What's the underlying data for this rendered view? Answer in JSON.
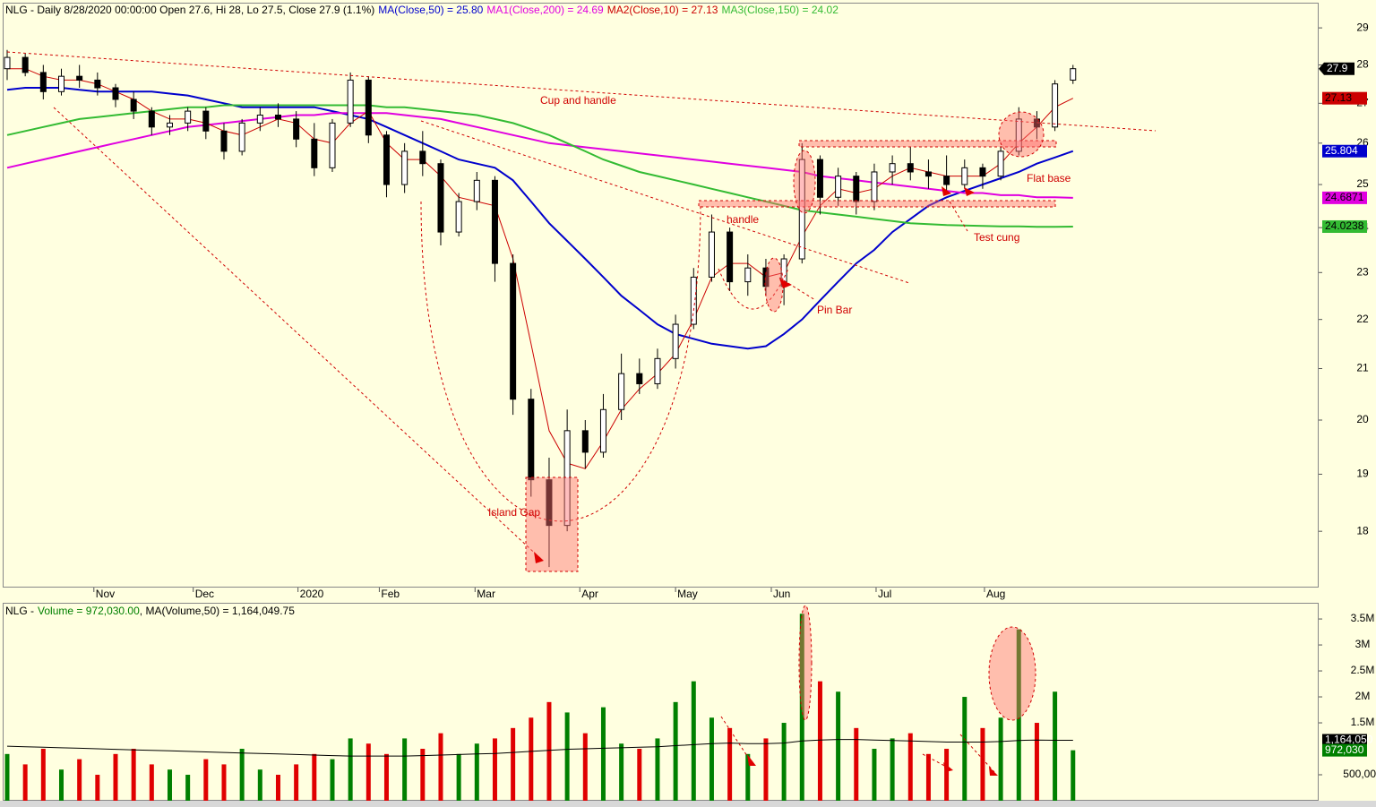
{
  "chart_data": [
    {
      "type": "candlestick",
      "title": "NLG - Daily 8/28/2020 00:00:00 Open 27.6, Hi 28, Lo 27.5, Close 27.9 (1.1%)",
      "xlim": [
        0,
        72.5
      ],
      "xticks": [
        {
          "value": 4.8,
          "label": "Nov"
        },
        {
          "value": 10.3,
          "label": "Dec"
        },
        {
          "value": 16.1,
          "label": "2020"
        },
        {
          "value": 20.6,
          "label": "Feb"
        },
        {
          "value": 25.9,
          "label": "Mar"
        },
        {
          "value": 31.7,
          "label": "Apr"
        },
        {
          "value": 37,
          "label": "May"
        },
        {
          "value": 42.3,
          "label": "Jun"
        },
        {
          "value": 48.1,
          "label": "Jul"
        },
        {
          "value": 54.1,
          "label": "Aug"
        }
      ],
      "ylim": [
        17.08,
        29.65
      ],
      "yticks": [
        18,
        19,
        20,
        21,
        22,
        23,
        24,
        25,
        26,
        27,
        28,
        29
      ],
      "log_scale": true,
      "up_color": "#ffffff",
      "down_color": "#000000",
      "outline_color": "#000000",
      "close_box_color": "#000000",
      "close_text_color": "#ffffff",
      "open": [
        27.9,
        28.2,
        27.8,
        27.3,
        27.7,
        27.6,
        27.4,
        27.1,
        26.8,
        26.4,
        26.5,
        26.8,
        26.3,
        25.8,
        26.5,
        26.7,
        26.6,
        26.1,
        25.4,
        26.5,
        27.6,
        26.2,
        25.0,
        25.8,
        25.5,
        23.9,
        24.6,
        25.1,
        23.2,
        20.4,
        18.9,
        18.1,
        19.8,
        19.4,
        20.2,
        20.9,
        20.7,
        21.2,
        21.9,
        22.9,
        23.9,
        22.8,
        23.1,
        22.7,
        23.3,
        25.6,
        24.7,
        25.2,
        24.6,
        25.3,
        25.5,
        25.3,
        25.2,
        25.0,
        25.4,
        25.2,
        25.8,
        26.6,
        26.4,
        27.6
      ],
      "high": [
        28.4,
        28.3,
        28.0,
        27.9,
        28.0,
        27.8,
        27.5,
        27.3,
        26.9,
        26.7,
        26.9,
        26.9,
        26.5,
        26.6,
        26.9,
        27.0,
        26.8,
        26.5,
        26.6,
        27.8,
        27.7,
        26.3,
        26.0,
        26.3,
        25.6,
        24.8,
        25.3,
        25.2,
        23.4,
        20.6,
        19.3,
        20.2,
        20.0,
        20.5,
        21.3,
        21.2,
        21.4,
        22.1,
        23.1,
        24.3,
        24.0,
        23.4,
        23.3,
        23.4,
        26.0,
        25.7,
        25.4,
        25.3,
        25.5,
        25.7,
        25.9,
        25.6,
        25.7,
        25.6,
        25.5,
        25.9,
        26.9,
        26.8,
        27.6,
        28.0
      ],
      "low": [
        27.6,
        27.7,
        27.1,
        27.2,
        27.4,
        27.2,
        26.9,
        26.6,
        26.2,
        26.2,
        26.3,
        26.1,
        25.6,
        25.7,
        26.3,
        26.4,
        25.9,
        25.2,
        25.3,
        26.4,
        26.0,
        24.7,
        24.8,
        25.2,
        23.6,
        23.8,
        24.4,
        22.8,
        20.1,
        18.6,
        17.4,
        18.0,
        19.1,
        19.3,
        20.0,
        20.5,
        20.6,
        21.0,
        21.8,
        22.8,
        22.6,
        22.5,
        22.5,
        22.3,
        23.2,
        24.3,
        24.5,
        24.3,
        24.4,
        25.0,
        25.1,
        24.9,
        24.8,
        24.9,
        24.9,
        25.1,
        25.7,
        26.1,
        26.3,
        27.5
      ],
      "close": [
        28.2,
        27.8,
        27.3,
        27.7,
        27.6,
        27.4,
        27.1,
        26.8,
        26.4,
        26.5,
        26.8,
        26.3,
        25.8,
        26.5,
        26.7,
        26.6,
        26.1,
        25.4,
        26.5,
        27.6,
        26.2,
        25.0,
        25.8,
        25.5,
        23.9,
        24.6,
        25.1,
        23.2,
        20.4,
        18.9,
        18.1,
        19.8,
        19.4,
        20.2,
        20.9,
        20.7,
        21.2,
        21.9,
        22.9,
        23.9,
        22.8,
        23.1,
        22.7,
        23.3,
        25.6,
        24.7,
        25.2,
        24.6,
        25.3,
        25.5,
        25.3,
        25.2,
        25.0,
        25.4,
        25.2,
        25.8,
        26.6,
        26.4,
        27.5,
        27.9
      ],
      "series": [
        {
          "name": "MA(Close,50) = 25.80",
          "color": "#0000cc",
          "label_color": "#ffffff",
          "values": [
            27.35,
            27.4,
            27.4,
            27.4,
            27.35,
            27.3,
            27.3,
            27.3,
            27.3,
            27.25,
            27.2,
            27.1,
            27.0,
            26.9,
            26.9,
            26.9,
            26.9,
            26.9,
            26.8,
            26.7,
            26.6,
            26.4,
            26.2,
            26.0,
            25.8,
            25.6,
            25.5,
            25.4,
            25.1,
            24.6,
            24.1,
            23.7,
            23.3,
            22.9,
            22.5,
            22.2,
            21.9,
            21.7,
            21.6,
            21.5,
            21.45,
            21.4,
            21.45,
            21.7,
            22.0,
            22.4,
            22.8,
            23.2,
            23.5,
            23.9,
            24.2,
            24.5,
            24.7,
            24.85,
            25.0,
            25.15,
            25.3,
            25.5,
            25.65,
            25.804
          ]
        },
        {
          "name": "MA1(Close,200) = 24.69",
          "color": "#e000e0",
          "label_color": "#000000",
          "values": [
            25.4,
            25.5,
            25.6,
            25.7,
            25.8,
            25.9,
            26.0,
            26.1,
            26.2,
            26.3,
            26.4,
            26.45,
            26.5,
            26.55,
            26.6,
            26.65,
            26.7,
            26.7,
            26.75,
            26.75,
            26.75,
            26.75,
            26.7,
            26.65,
            26.6,
            26.5,
            26.4,
            26.3,
            26.2,
            26.1,
            26.0,
            25.95,
            25.9,
            25.85,
            25.8,
            25.75,
            25.7,
            25.65,
            25.6,
            25.55,
            25.5,
            25.45,
            25.4,
            25.35,
            25.3,
            25.2,
            25.15,
            25.1,
            25.05,
            25.0,
            24.95,
            24.9,
            24.85,
            24.8,
            24.8,
            24.75,
            24.75,
            24.7,
            24.7,
            24.6871
          ]
        },
        {
          "name": "MA2(Close,10) = 27.13",
          "color": "#cc0000",
          "label_color": "#000000",
          "values": [
            27.9,
            27.9,
            27.7,
            27.6,
            27.6,
            27.5,
            27.3,
            27.1,
            26.8,
            26.6,
            26.6,
            26.5,
            26.3,
            26.2,
            26.4,
            26.6,
            26.5,
            26.1,
            26.0,
            26.5,
            26.8,
            26.0,
            25.6,
            25.6,
            25.2,
            24.7,
            24.6,
            24.5,
            23.3,
            21.5,
            19.8,
            19.2,
            19.1,
            19.6,
            20.2,
            20.6,
            20.9,
            21.3,
            22.0,
            22.9,
            23.2,
            23.2,
            22.9,
            23.0,
            23.8,
            24.5,
            24.9,
            24.8,
            24.9,
            25.2,
            25.4,
            25.3,
            25.2,
            25.2,
            25.2,
            25.5,
            26.0,
            26.4,
            26.9,
            27.13
          ]
        },
        {
          "name": "MA3(Close,150) = 24.02",
          "color": "#33bb33",
          "label_color": "#000000",
          "values": [
            26.2,
            26.3,
            26.4,
            26.5,
            26.6,
            26.65,
            26.7,
            26.75,
            26.8,
            26.85,
            26.9,
            26.9,
            26.95,
            26.95,
            26.95,
            26.95,
            26.95,
            26.95,
            26.95,
            26.95,
            26.95,
            26.9,
            26.9,
            26.85,
            26.8,
            26.75,
            26.7,
            26.6,
            26.5,
            26.35,
            26.2,
            26.0,
            25.8,
            25.6,
            25.45,
            25.3,
            25.2,
            25.1,
            25.0,
            24.9,
            24.8,
            24.7,
            24.6,
            24.5,
            24.4,
            24.35,
            24.3,
            24.25,
            24.2,
            24.15,
            24.1,
            24.08,
            24.06,
            24.05,
            24.04,
            24.03,
            24.03,
            24.02,
            24.02,
            24.0238
          ]
        }
      ],
      "annotations": [
        "Cup and handle",
        "handle",
        "Island Gap",
        "Pin Bar",
        "Flat base",
        "Test cung"
      ]
    },
    {
      "type": "bar",
      "title": "NLG -",
      "name": "Volume = 972,030.00",
      "xlim": [
        0,
        72.5
      ],
      "ylim": [
        0,
        3760000
      ],
      "yticks": [
        {
          "value": 500000,
          "label": "500,000"
        },
        {
          "value": 1500000,
          "label": "1.5M"
        },
        {
          "value": 2000000,
          "label": "2M"
        },
        {
          "value": 2500000,
          "label": "2.5M"
        },
        {
          "value": 3000000,
          "label": "3M"
        },
        {
          "value": 3500000,
          "label": "3.5M"
        }
      ],
      "up_color": "#008000",
      "down_color": "#e00000",
      "values": [
        900000,
        700000,
        1000000,
        600000,
        800000,
        500000,
        900000,
        1000000,
        700000,
        600000,
        500000,
        800000,
        700000,
        1000000,
        600000,
        500000,
        700000,
        900000,
        800000,
        1200000,
        1100000,
        900000,
        1200000,
        1000000,
        1300000,
        900000,
        1100000,
        1200000,
        1400000,
        1600000,
        1900000,
        1700000,
        1300000,
        1800000,
        1100000,
        1000000,
        1200000,
        1900000,
        2300000,
        1600000,
        1400000,
        900000,
        1200000,
        1500000,
        3600000,
        2300000,
        2100000,
        1400000,
        1000000,
        1200000,
        1300000,
        900000,
        1000000,
        2000000,
        1400000,
        1600000,
        3300000,
        1500000,
        2100000,
        972030
      ],
      "last_label": "972,030",
      "series": [
        {
          "name": ", MA(Volume,50) = 1,164,049.75",
          "color": "#000000",
          "label_color": "#ffffff",
          "last_label": "1,164,050",
          "values": [
            1050000,
            1040000,
            1030000,
            1020000,
            1010000,
            1000000,
            990000,
            980000,
            970000,
            960000,
            950000,
            940000,
            930000,
            920000,
            910000,
            900000,
            890000,
            880000,
            870000,
            860000,
            860000,
            860000,
            860000,
            870000,
            880000,
            890000,
            900000,
            910000,
            930000,
            950000,
            970000,
            990000,
            1000000,
            1010000,
            1020000,
            1030000,
            1040000,
            1060000,
            1080000,
            1100000,
            1110000,
            1100000,
            1100000,
            1110000,
            1150000,
            1170000,
            1180000,
            1180000,
            1170000,
            1160000,
            1150000,
            1140000,
            1130000,
            1130000,
            1130000,
            1140000,
            1160000,
            1170000,
            1165000,
            1164049.75
          ]
        }
      ]
    }
  ]
}
